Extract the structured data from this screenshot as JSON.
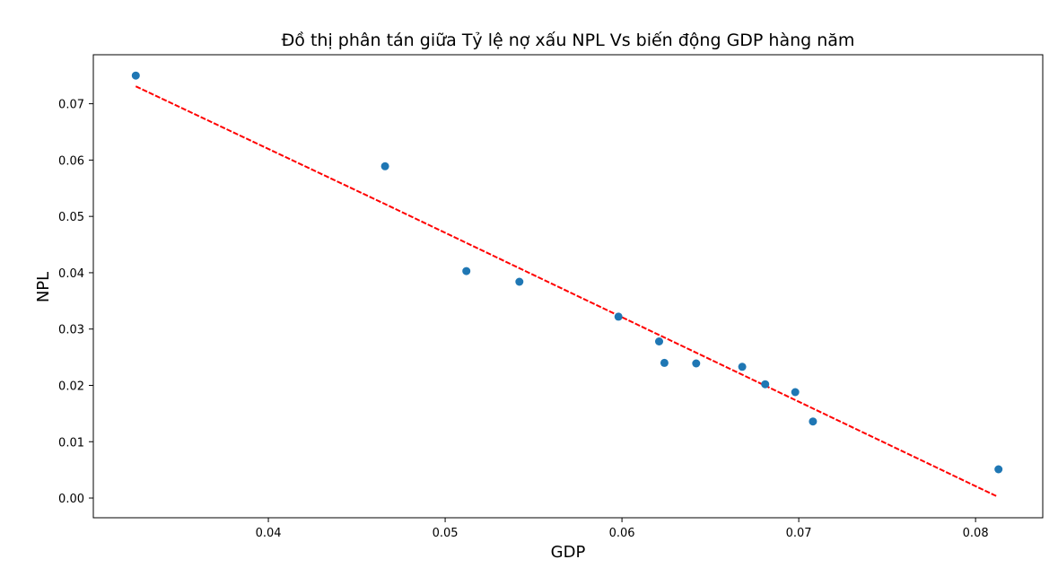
{
  "chart_data": {
    "type": "scatter",
    "title": "Đồ thị phân tán giữa Tỷ lệ nợ xấu NPL Vs biến động GDP hàng năm",
    "xlabel": "GDP",
    "ylabel": "NPL",
    "xlim": [
      0.0301,
      0.0838
    ],
    "ylim": [
      -0.0035,
      0.0787
    ],
    "xticks": [
      0.04,
      0.05,
      0.06,
      0.07,
      0.08
    ],
    "xtick_labels": [
      "0.04",
      "0.05",
      "0.06",
      "0.07",
      "0.08"
    ],
    "yticks": [
      0.0,
      0.01,
      0.02,
      0.03,
      0.04,
      0.05,
      0.06,
      0.07
    ],
    "ytick_labels": [
      "0.00",
      "0.01",
      "0.02",
      "0.03",
      "0.04",
      "0.05",
      "0.06",
      "0.07"
    ],
    "grid": false,
    "series": [
      {
        "type": "scatter",
        "color": "#1f77b4",
        "x": [
          0.0325,
          0.0466,
          0.0512,
          0.0542,
          0.0598,
          0.0621,
          0.0624,
          0.0642,
          0.0668,
          0.0681,
          0.0698,
          0.0708,
          0.0813
        ],
        "y": [
          0.075,
          0.0589,
          0.0403,
          0.0384,
          0.0322,
          0.0278,
          0.024,
          0.0239,
          0.0233,
          0.0202,
          0.0188,
          0.0136,
          0.0051
        ]
      },
      {
        "type": "line",
        "style": "dashed",
        "color": "#ff0000",
        "x": [
          0.0325,
          0.0466,
          0.0812
        ],
        "y": [
          0.0731,
          0.0522,
          0.0003
        ]
      }
    ]
  }
}
